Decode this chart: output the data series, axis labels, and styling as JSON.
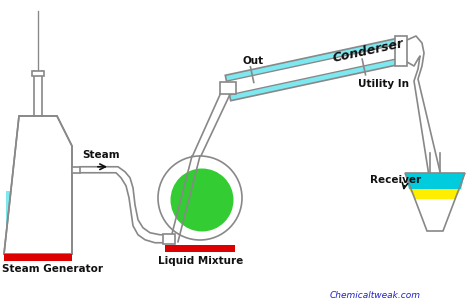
{
  "background_color": "#ffffff",
  "labels": {
    "steam_generator": "Steam Generator",
    "steam": "Steam",
    "liquid_mixture": "Liquid Mixture",
    "condenser": "Conderser",
    "out": "Out",
    "utility_in": "Utility In",
    "receiver": "Receiver",
    "website": "Chemicaltweak.com"
  },
  "colors": {
    "water_cyan": "#7de8f0",
    "condenser_cyan": "#7de8f0",
    "green_plant": "#33cc33",
    "red_bar": "#dd0000",
    "receiver_cyan": "#00ccdd",
    "receiver_yellow": "#ffee00",
    "receiver_green": "#00bb00",
    "outline": "#888888",
    "dark": "#111111",
    "website_color": "#2222cc"
  },
  "figsize": [
    4.74,
    3.06
  ],
  "dpi": 100
}
